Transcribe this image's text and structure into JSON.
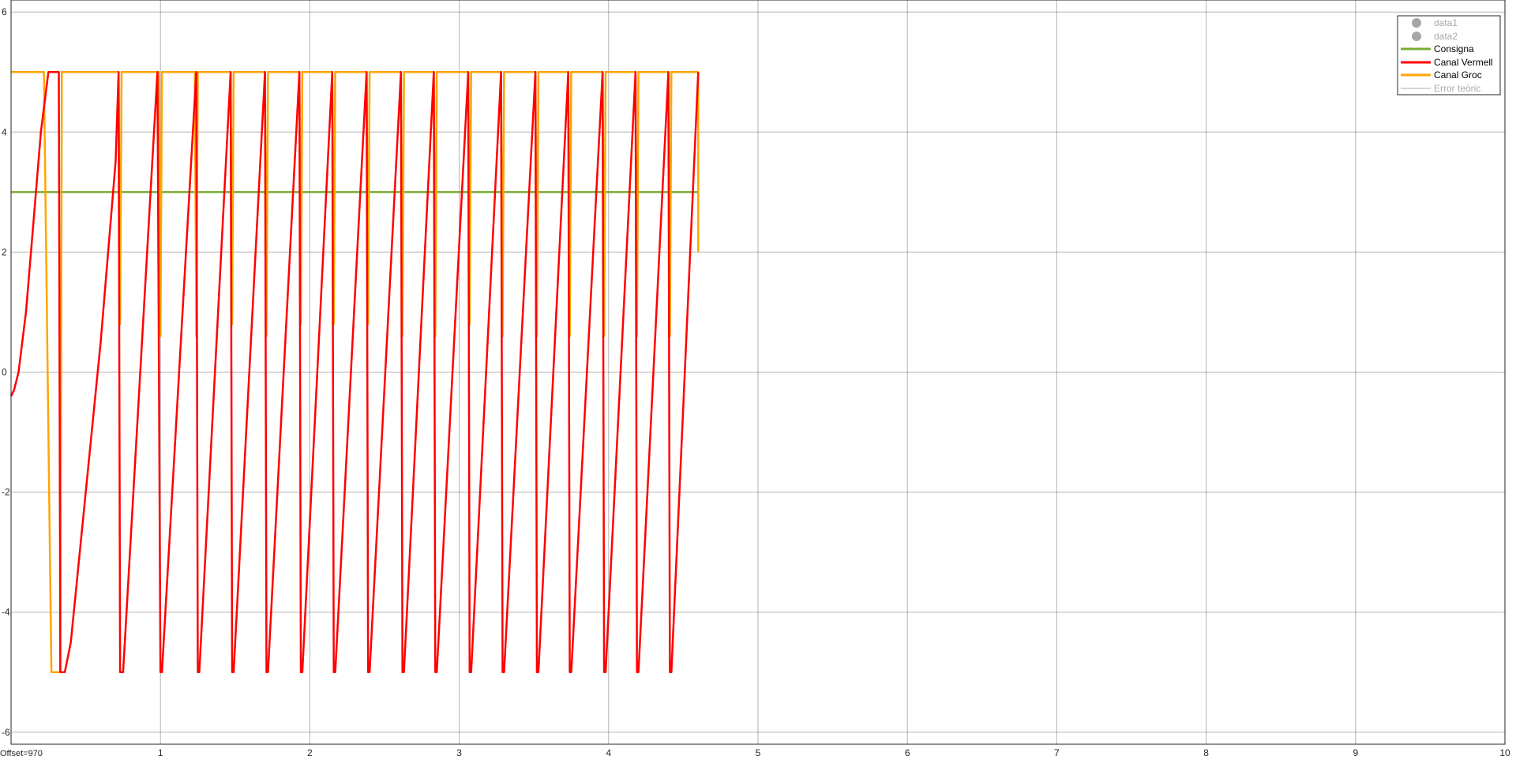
{
  "chart_data": {
    "type": "line",
    "title": "",
    "xlabel": "",
    "ylabel": "",
    "xlim": [
      0,
      10
    ],
    "ylim": [
      -6.2,
      6.2
    ],
    "x_ticks": [
      1,
      2,
      3,
      4,
      5,
      6,
      7,
      8,
      9,
      10
    ],
    "x_tick_labels": [
      "1",
      "2",
      "3",
      "4",
      "5",
      "6",
      "7",
      "8",
      "9",
      "10"
    ],
    "y_ticks": [
      -6,
      -4,
      -2,
      0,
      2,
      4,
      6
    ],
    "y_tick_labels": [
      "-6",
      "-4",
      "-2",
      "0",
      "2",
      "4",
      "6"
    ],
    "grid": true,
    "legend_position": "top-right",
    "offset_text": "Offset=970",
    "series": [
      {
        "name": "data1",
        "color": "#a6a6a6",
        "marker": "circle",
        "values": []
      },
      {
        "name": "data2",
        "color": "#a6a6a6",
        "marker": "circle",
        "values": []
      },
      {
        "name": "Consigna",
        "color": "#77ac30",
        "x": [
          0,
          4.6
        ],
        "y": [
          3,
          3
        ]
      },
      {
        "name": "Canal Vermell",
        "color": "#ff0000",
        "x": [
          0,
          0.02,
          0.05,
          0.1,
          0.15,
          0.2,
          0.25,
          0.27,
          0.32,
          0.33,
          0.36,
          0.4,
          0.5,
          0.6,
          0.7,
          0.72,
          0.73,
          0.75,
          0.98,
          1.0,
          1.01,
          1.24,
          1.25,
          1.26,
          1.47,
          1.48,
          1.49,
          1.7,
          1.71,
          1.72,
          1.93,
          1.94,
          1.95,
          2.15,
          2.16,
          2.17,
          2.38,
          2.39,
          2.4,
          2.61,
          2.62,
          2.63,
          2.83,
          2.84,
          2.85,
          3.06,
          3.07,
          3.08,
          3.28,
          3.29,
          3.3,
          3.51,
          3.52,
          3.53,
          3.73,
          3.74,
          3.75,
          3.96,
          3.97,
          3.98,
          4.18,
          4.19,
          4.2,
          4.4,
          4.41,
          4.42,
          4.6
        ],
        "y": [
          -0.4,
          -0.3,
          0,
          1.0,
          2.5,
          4.0,
          5.0,
          5.0,
          5.0,
          -5.0,
          -5.0,
          -4.5,
          -2.0,
          0.5,
          3.5,
          5.0,
          -5.0,
          -5.0,
          5.0,
          -5.0,
          -5.0,
          5.0,
          -5.0,
          -5.0,
          5.0,
          -5.0,
          -5.0,
          5.0,
          -5.0,
          -5.0,
          5.0,
          -5.0,
          -5.0,
          5.0,
          -5.0,
          -5.0,
          5.0,
          -5.0,
          -5.0,
          5.0,
          -5.0,
          -5.0,
          5.0,
          -5.0,
          -5.0,
          5.0,
          -5.0,
          -5.0,
          5.0,
          -5.0,
          -5.0,
          5.0,
          -5.0,
          -5.0,
          5.0,
          -5.0,
          -5.0,
          5.0,
          -5.0,
          -5.0,
          5.0,
          -5.0,
          -5.0,
          5.0,
          -5.0,
          -5.0,
          5.0
        ]
      },
      {
        "name": "Canal Groc",
        "color": "#ffa500",
        "x": [
          0,
          0.22,
          0.27,
          0.33,
          0.34,
          0.72,
          0.73,
          0.74,
          0.99,
          1.0,
          1.01,
          1.23,
          1.24,
          1.25,
          1.47,
          1.48,
          1.49,
          1.7,
          1.71,
          1.72,
          1.93,
          1.94,
          1.95,
          2.15,
          2.16,
          2.17,
          2.38,
          2.39,
          2.4,
          2.61,
          2.62,
          2.63,
          2.83,
          2.84,
          2.85,
          3.06,
          3.07,
          3.08,
          3.28,
          3.29,
          3.3,
          3.51,
          3.52,
          3.53,
          3.73,
          3.74,
          3.75,
          3.96,
          3.97,
          3.98,
          4.18,
          4.19,
          4.2,
          4.4,
          4.41,
          4.42,
          4.6,
          4.6
        ],
        "y": [
          5.0,
          5.0,
          -5.0,
          -5.0,
          5.0,
          5.0,
          0.8,
          5.0,
          5.0,
          0.6,
          5.0,
          5.0,
          0.6,
          5.0,
          5.0,
          0.8,
          5.0,
          5.0,
          0.6,
          5.0,
          5.0,
          0.8,
          5.0,
          5.0,
          0.8,
          5.0,
          5.0,
          0.8,
          5.0,
          5.0,
          0.6,
          5.0,
          5.0,
          0.6,
          5.0,
          5.0,
          0.8,
          5.0,
          5.0,
          0.6,
          5.0,
          5.0,
          0.6,
          5.0,
          5.0,
          0.6,
          5.0,
          5.0,
          0.6,
          5.0,
          5.0,
          0.6,
          5.0,
          5.0,
          0.6,
          5.0,
          5.0,
          2.0
        ]
      },
      {
        "name": "Error teòric",
        "color": "#c8c8c8",
        "values": []
      }
    ]
  }
}
